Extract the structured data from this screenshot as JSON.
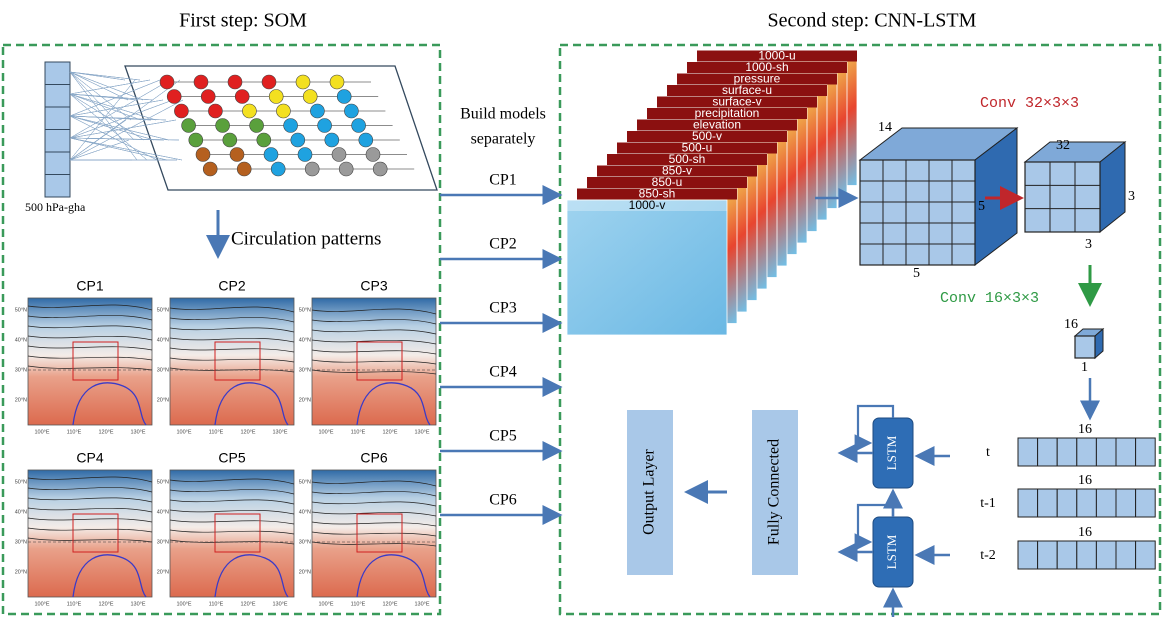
{
  "som": {
    "title": "First step: SOM",
    "input_label": "500 hPa-gha",
    "arrow_label": "Circulation patterns",
    "maps": [
      {
        "title": "CP1"
      },
      {
        "title": "CP2"
      },
      {
        "title": "CP3"
      },
      {
        "title": "CP4"
      },
      {
        "title": "CP5"
      },
      {
        "title": "CP6"
      }
    ],
    "lat_ticks": [
      "50°N",
      "40°N",
      "30°N",
      "20°N"
    ],
    "lon_ticks": [
      "100°E",
      "110°E",
      "120°E",
      "130°E"
    ]
  },
  "middle": {
    "label_lines": [
      "Build models",
      "separately"
    ],
    "arrows": [
      "CP1",
      "CP2",
      "CP3",
      "CP4",
      "CP5",
      "CP6"
    ]
  },
  "cnn_lstm": {
    "title": "Second step: CNN-LSTM",
    "layers": [
      "1000-v",
      "850-sh",
      "850-u",
      "850-v",
      "500-sh",
      "500-u",
      "500-v",
      "elevation",
      "precipitation",
      "surface-v",
      "surface-u",
      "pressure",
      "1000-sh",
      "1000-u"
    ],
    "conv1": {
      "label": "Conv 32×3×3",
      "big_cube": [
        "14",
        "5",
        "5"
      ],
      "cube": [
        "32",
        "3",
        "3"
      ]
    },
    "conv2": {
      "label": "Conv 16×3×3",
      "cube": [
        "16",
        "1"
      ]
    },
    "sequence": [
      {
        "time": "t",
        "size": "16"
      },
      {
        "time": "t-1",
        "size": "16"
      },
      {
        "time": "t-2",
        "size": "16"
      }
    ],
    "lstm": [
      "LSTM",
      "LSTM"
    ],
    "fully_connected": "Fully Connected",
    "output_layer": "Output Layer"
  }
}
